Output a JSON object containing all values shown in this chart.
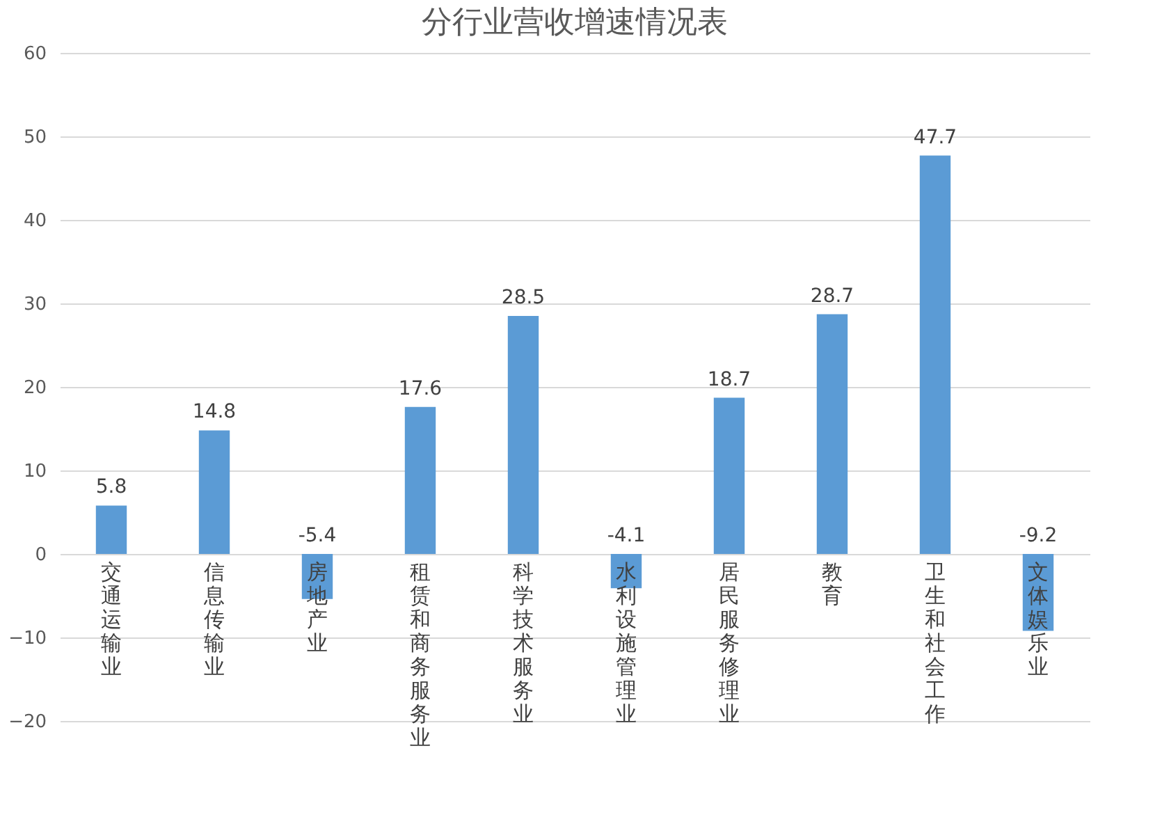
{
  "chart_data": {
    "type": "bar",
    "title": "分行业营收增速情况表",
    "categories": [
      "交通运输业",
      "信息传输业",
      "房地产业",
      "租赁和商务服务业",
      "科学技术服务业",
      "水利设施管理业",
      "居民服务修理业",
      "教育",
      "卫生和社会工作",
      "文体娱乐业"
    ],
    "values": [
      5.8,
      14.8,
      -5.4,
      17.6,
      28.5,
      -4.1,
      18.7,
      28.7,
      47.7,
      -9.2
    ],
    "color": "#5b9bd5",
    "ylim": [
      -20,
      60
    ],
    "yticks": [
      -20,
      -10,
      0,
      10,
      20,
      30,
      40,
      50,
      60
    ],
    "grid": "y",
    "data_labels": true
  }
}
